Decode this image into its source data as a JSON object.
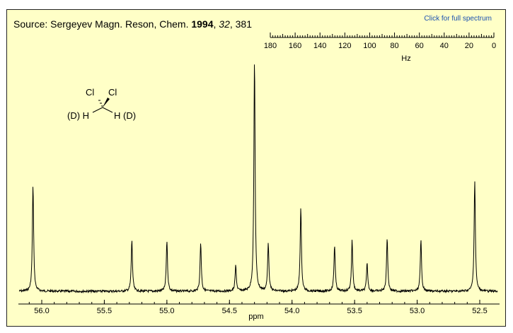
{
  "source": {
    "prefix": "Source: Sergeyev Magn. Reson, Chem. ",
    "year": "1994",
    "sep1": ", ",
    "volume": "32",
    "sep2": ", ",
    "page": "381"
  },
  "link_label": "Click for full spectrum",
  "molecule": {
    "cl_left": "Cl",
    "cl_right": "Cl",
    "h_left": "(D) H",
    "h_right": "H (D)"
  },
  "colors": {
    "background": "#ffffc7",
    "trace": "#000000",
    "link": "#1a50b0"
  },
  "chart_data": {
    "type": "line",
    "title": "",
    "xlabel": "ppm",
    "ylabel": "",
    "xlim": [
      56.15,
      52.38
    ],
    "x_ticks": [
      "56.0",
      "55.5",
      "55.0",
      "54.5",
      "54.0",
      "53.5",
      "53.0",
      "52.5"
    ],
    "x_tick_values": [
      56.0,
      55.5,
      55.0,
      54.5,
      54.0,
      53.5,
      53.0,
      52.5
    ],
    "hz_scale": {
      "label": "Hz",
      "range": [
        180,
        0
      ],
      "ticks": [
        "180",
        "160",
        "140",
        "120",
        "100",
        "80",
        "60",
        "40",
        "20",
        "0"
      ]
    },
    "peaks": [
      {
        "ppm": 56.07,
        "height": 0.46
      },
      {
        "ppm": 55.28,
        "height": 0.22
      },
      {
        "ppm": 55.0,
        "height": 0.22
      },
      {
        "ppm": 54.73,
        "height": 0.21
      },
      {
        "ppm": 54.45,
        "height": 0.11
      },
      {
        "ppm": 54.3,
        "height": 1.0
      },
      {
        "ppm": 54.19,
        "height": 0.21
      },
      {
        "ppm": 53.93,
        "height": 0.36
      },
      {
        "ppm": 53.66,
        "height": 0.2
      },
      {
        "ppm": 53.52,
        "height": 0.22
      },
      {
        "ppm": 53.4,
        "height": 0.12
      },
      {
        "ppm": 53.24,
        "height": 0.23
      },
      {
        "ppm": 52.97,
        "height": 0.22
      },
      {
        "ppm": 52.54,
        "height": 0.48
      }
    ]
  }
}
